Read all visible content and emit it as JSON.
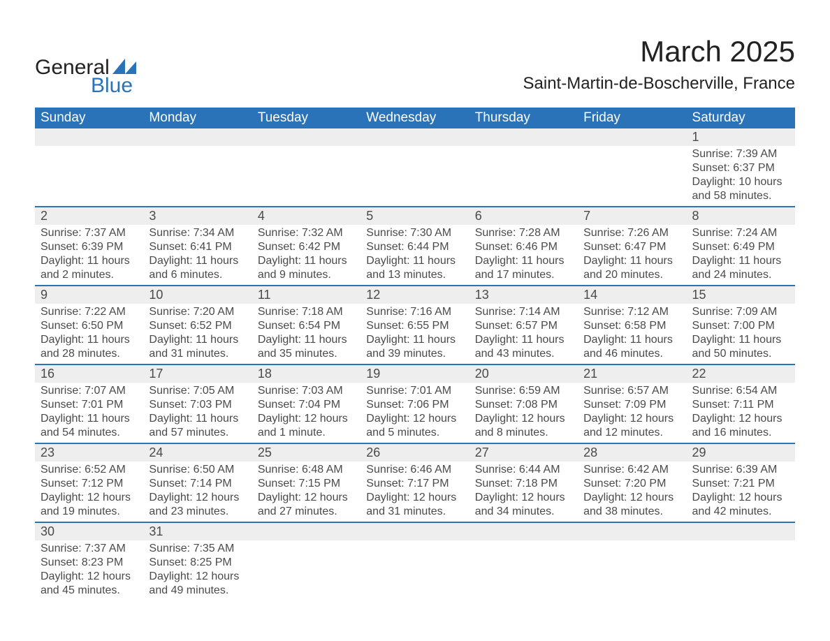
{
  "logo": {
    "text_top": "General",
    "text_bottom": "Blue",
    "mark_color": "#2b73b8"
  },
  "title": "March 2025",
  "location": "Saint-Martin-de-Boscherville, France",
  "colors": {
    "header_bg": "#2b73b8",
    "header_fg": "#ffffff",
    "daynum_bg": "#eeeeee",
    "text": "#4a4a4a",
    "separator": "#2b73b8",
    "page_bg": "#ffffff"
  },
  "day_names": [
    "Sunday",
    "Monday",
    "Tuesday",
    "Wednesday",
    "Thursday",
    "Friday",
    "Saturday"
  ],
  "weeks": [
    [
      null,
      null,
      null,
      null,
      null,
      null,
      {
        "n": "1",
        "sr": "Sunrise: 7:39 AM",
        "ss": "Sunset: 6:37 PM",
        "d1": "Daylight: 10 hours",
        "d2": "and 58 minutes."
      }
    ],
    [
      {
        "n": "2",
        "sr": "Sunrise: 7:37 AM",
        "ss": "Sunset: 6:39 PM",
        "d1": "Daylight: 11 hours",
        "d2": "and 2 minutes."
      },
      {
        "n": "3",
        "sr": "Sunrise: 7:34 AM",
        "ss": "Sunset: 6:41 PM",
        "d1": "Daylight: 11 hours",
        "d2": "and 6 minutes."
      },
      {
        "n": "4",
        "sr": "Sunrise: 7:32 AM",
        "ss": "Sunset: 6:42 PM",
        "d1": "Daylight: 11 hours",
        "d2": "and 9 minutes."
      },
      {
        "n": "5",
        "sr": "Sunrise: 7:30 AM",
        "ss": "Sunset: 6:44 PM",
        "d1": "Daylight: 11 hours",
        "d2": "and 13 minutes."
      },
      {
        "n": "6",
        "sr": "Sunrise: 7:28 AM",
        "ss": "Sunset: 6:46 PM",
        "d1": "Daylight: 11 hours",
        "d2": "and 17 minutes."
      },
      {
        "n": "7",
        "sr": "Sunrise: 7:26 AM",
        "ss": "Sunset: 6:47 PM",
        "d1": "Daylight: 11 hours",
        "d2": "and 20 minutes."
      },
      {
        "n": "8",
        "sr": "Sunrise: 7:24 AM",
        "ss": "Sunset: 6:49 PM",
        "d1": "Daylight: 11 hours",
        "d2": "and 24 minutes."
      }
    ],
    [
      {
        "n": "9",
        "sr": "Sunrise: 7:22 AM",
        "ss": "Sunset: 6:50 PM",
        "d1": "Daylight: 11 hours",
        "d2": "and 28 minutes."
      },
      {
        "n": "10",
        "sr": "Sunrise: 7:20 AM",
        "ss": "Sunset: 6:52 PM",
        "d1": "Daylight: 11 hours",
        "d2": "and 31 minutes."
      },
      {
        "n": "11",
        "sr": "Sunrise: 7:18 AM",
        "ss": "Sunset: 6:54 PM",
        "d1": "Daylight: 11 hours",
        "d2": "and 35 minutes."
      },
      {
        "n": "12",
        "sr": "Sunrise: 7:16 AM",
        "ss": "Sunset: 6:55 PM",
        "d1": "Daylight: 11 hours",
        "d2": "and 39 minutes."
      },
      {
        "n": "13",
        "sr": "Sunrise: 7:14 AM",
        "ss": "Sunset: 6:57 PM",
        "d1": "Daylight: 11 hours",
        "d2": "and 43 minutes."
      },
      {
        "n": "14",
        "sr": "Sunrise: 7:12 AM",
        "ss": "Sunset: 6:58 PM",
        "d1": "Daylight: 11 hours",
        "d2": "and 46 minutes."
      },
      {
        "n": "15",
        "sr": "Sunrise: 7:09 AM",
        "ss": "Sunset: 7:00 PM",
        "d1": "Daylight: 11 hours",
        "d2": "and 50 minutes."
      }
    ],
    [
      {
        "n": "16",
        "sr": "Sunrise: 7:07 AM",
        "ss": "Sunset: 7:01 PM",
        "d1": "Daylight: 11 hours",
        "d2": "and 54 minutes."
      },
      {
        "n": "17",
        "sr": "Sunrise: 7:05 AM",
        "ss": "Sunset: 7:03 PM",
        "d1": "Daylight: 11 hours",
        "d2": "and 57 minutes."
      },
      {
        "n": "18",
        "sr": "Sunrise: 7:03 AM",
        "ss": "Sunset: 7:04 PM",
        "d1": "Daylight: 12 hours",
        "d2": "and 1 minute."
      },
      {
        "n": "19",
        "sr": "Sunrise: 7:01 AM",
        "ss": "Sunset: 7:06 PM",
        "d1": "Daylight: 12 hours",
        "d2": "and 5 minutes."
      },
      {
        "n": "20",
        "sr": "Sunrise: 6:59 AM",
        "ss": "Sunset: 7:08 PM",
        "d1": "Daylight: 12 hours",
        "d2": "and 8 minutes."
      },
      {
        "n": "21",
        "sr": "Sunrise: 6:57 AM",
        "ss": "Sunset: 7:09 PM",
        "d1": "Daylight: 12 hours",
        "d2": "and 12 minutes."
      },
      {
        "n": "22",
        "sr": "Sunrise: 6:54 AM",
        "ss": "Sunset: 7:11 PM",
        "d1": "Daylight: 12 hours",
        "d2": "and 16 minutes."
      }
    ],
    [
      {
        "n": "23",
        "sr": "Sunrise: 6:52 AM",
        "ss": "Sunset: 7:12 PM",
        "d1": "Daylight: 12 hours",
        "d2": "and 19 minutes."
      },
      {
        "n": "24",
        "sr": "Sunrise: 6:50 AM",
        "ss": "Sunset: 7:14 PM",
        "d1": "Daylight: 12 hours",
        "d2": "and 23 minutes."
      },
      {
        "n": "25",
        "sr": "Sunrise: 6:48 AM",
        "ss": "Sunset: 7:15 PM",
        "d1": "Daylight: 12 hours",
        "d2": "and 27 minutes."
      },
      {
        "n": "26",
        "sr": "Sunrise: 6:46 AM",
        "ss": "Sunset: 7:17 PM",
        "d1": "Daylight: 12 hours",
        "d2": "and 31 minutes."
      },
      {
        "n": "27",
        "sr": "Sunrise: 6:44 AM",
        "ss": "Sunset: 7:18 PM",
        "d1": "Daylight: 12 hours",
        "d2": "and 34 minutes."
      },
      {
        "n": "28",
        "sr": "Sunrise: 6:42 AM",
        "ss": "Sunset: 7:20 PM",
        "d1": "Daylight: 12 hours",
        "d2": "and 38 minutes."
      },
      {
        "n": "29",
        "sr": "Sunrise: 6:39 AM",
        "ss": "Sunset: 7:21 PM",
        "d1": "Daylight: 12 hours",
        "d2": "and 42 minutes."
      }
    ],
    [
      {
        "n": "30",
        "sr": "Sunrise: 7:37 AM",
        "ss": "Sunset: 8:23 PM",
        "d1": "Daylight: 12 hours",
        "d2": "and 45 minutes."
      },
      {
        "n": "31",
        "sr": "Sunrise: 7:35 AM",
        "ss": "Sunset: 8:25 PM",
        "d1": "Daylight: 12 hours",
        "d2": "and 49 minutes."
      },
      null,
      null,
      null,
      null,
      null
    ]
  ]
}
